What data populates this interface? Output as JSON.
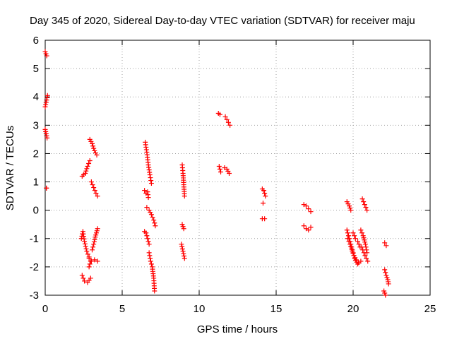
{
  "chart_data": {
    "type": "scatter",
    "title": "Day 345 of 2020, Sidereal Day-to-day VTEC variation (SDTVAR) for receiver maju",
    "xlabel": "GPS time / hours",
    "ylabel": "SDTVAR / TECUs",
    "xlim": [
      0,
      25
    ],
    "ylim": [
      -3,
      6
    ],
    "xticks": [
      0,
      5,
      10,
      15,
      20,
      25
    ],
    "yticks": [
      -3,
      -2,
      -1,
      0,
      1,
      2,
      3,
      4,
      5,
      6
    ],
    "grid": true,
    "marker": "plus",
    "color": "#ff0000",
    "segments": [
      {
        "x": [
          0.0,
          0.1
        ],
        "y": [
          5.6,
          5.45
        ]
      },
      {
        "x": [
          0.0,
          0.15
        ],
        "y": [
          3.65,
          4.05
        ]
      },
      {
        "x": [
          0.0,
          0.12
        ],
        "y": [
          2.85,
          2.55
        ]
      },
      {
        "x": [
          0.08,
          0.08
        ],
        "y": [
          0.78,
          0.78
        ]
      },
      {
        "x": [
          2.4,
          2.6,
          2.75,
          2.9
        ],
        "y": [
          1.2,
          1.3,
          1.55,
          1.75
        ]
      },
      {
        "x": [
          2.9,
          3.05,
          3.2,
          3.35
        ],
        "y": [
          2.5,
          2.35,
          2.1,
          1.95
        ]
      },
      {
        "x": [
          3.0,
          3.15,
          3.3,
          3.4
        ],
        "y": [
          1.0,
          0.8,
          0.6,
          0.5
        ]
      },
      {
        "x": [
          2.35,
          2.45,
          2.55,
          2.7,
          2.85
        ],
        "y": [
          -1.0,
          -0.75,
          -1.1,
          -1.45,
          -1.65
        ]
      },
      {
        "x": [
          2.85,
          3.0,
          3.2,
          3.4
        ],
        "y": [
          -1.7,
          -1.8,
          -1.75,
          -1.8
        ]
      },
      {
        "x": [
          3.05,
          3.15,
          3.25,
          3.4
        ],
        "y": [
          -1.4,
          -1.2,
          -0.95,
          -0.65
        ]
      },
      {
        "x": [
          2.4,
          2.55,
          2.75,
          2.95
        ],
        "y": [
          -2.3,
          -2.5,
          -2.55,
          -2.4
        ]
      },
      {
        "x": [
          2.85,
          2.95
        ],
        "y": [
          -2.0,
          -1.8
        ]
      },
      {
        "x": [
          6.5,
          6.6,
          6.7,
          6.8,
          6.9
        ],
        "y": [
          2.4,
          2.05,
          1.6,
          1.25,
          0.95
        ]
      },
      {
        "x": [
          6.45,
          6.55,
          6.65,
          6.7
        ],
        "y": [
          0.7,
          0.6,
          0.65,
          0.45
        ]
      },
      {
        "x": [
          6.6,
          6.75,
          6.9,
          7.05,
          7.15
        ],
        "y": [
          0.1,
          0.0,
          -0.15,
          -0.35,
          -0.55
        ]
      },
      {
        "x": [
          6.45,
          6.55,
          6.65,
          6.75
        ],
        "y": [
          -0.75,
          -0.8,
          -1.0,
          -1.2
        ]
      },
      {
        "x": [
          6.75,
          6.85,
          6.95,
          7.05,
          7.1
        ],
        "y": [
          -1.5,
          -1.8,
          -2.0,
          -2.4,
          -2.85
        ]
      },
      {
        "x": [
          8.9,
          8.95,
          9.0,
          9.05
        ],
        "y": [
          1.6,
          1.3,
          0.9,
          0.5
        ]
      },
      {
        "x": [
          8.9,
          9.0
        ],
        "y": [
          -0.5,
          -0.65
        ]
      },
      {
        "x": [
          8.85,
          8.95,
          9.05
        ],
        "y": [
          -1.2,
          -1.45,
          -1.7
        ]
      },
      {
        "x": [
          11.25,
          11.35
        ],
        "y": [
          3.42,
          3.38
        ]
      },
      {
        "x": [
          11.7,
          11.8,
          11.9,
          12.0
        ],
        "y": [
          3.3,
          3.2,
          3.1,
          3.0
        ]
      },
      {
        "x": [
          11.3,
          11.4
        ],
        "y": [
          1.55,
          1.35
        ]
      },
      {
        "x": [
          11.65,
          11.8,
          11.95
        ],
        "y": [
          1.5,
          1.45,
          1.3
        ]
      },
      {
        "x": [
          14.1,
          14.2,
          14.3
        ],
        "y": [
          0.75,
          0.7,
          0.5
        ]
      },
      {
        "x": [
          14.15
        ],
        "y": [
          0.25
        ]
      },
      {
        "x": [
          14.1,
          14.25
        ],
        "y": [
          -0.3,
          -0.3
        ]
      },
      {
        "x": [
          16.8,
          16.95,
          17.1,
          17.25
        ],
        "y": [
          0.2,
          0.15,
          0.05,
          -0.05
        ]
      },
      {
        "x": [
          16.8,
          16.95,
          17.1,
          17.25
        ],
        "y": [
          -0.55,
          -0.65,
          -0.7,
          -0.6
        ]
      },
      {
        "x": [
          19.6,
          19.75,
          19.85
        ],
        "y": [
          0.3,
          0.15,
          0.0
        ]
      },
      {
        "x": [
          19.6,
          19.7,
          19.8,
          19.9,
          20.0,
          20.1,
          20.3
        ],
        "y": [
          -0.7,
          -0.9,
          -1.1,
          -1.3,
          -1.5,
          -1.7,
          -1.9
        ]
      },
      {
        "x": [
          19.65,
          19.8,
          19.95,
          20.05,
          20.2,
          20.35,
          20.5
        ],
        "y": [
          -1.0,
          -1.2,
          -1.45,
          -1.6,
          -1.75,
          -1.85,
          -1.8
        ]
      },
      {
        "x": [
          20.0,
          20.15,
          20.3,
          20.45
        ],
        "y": [
          -0.8,
          -1.0,
          -1.1,
          -1.3
        ]
      },
      {
        "x": [
          20.6,
          20.75,
          20.9
        ],
        "y": [
          0.4,
          0.2,
          0.0
        ]
      },
      {
        "x": [
          20.5,
          20.65,
          20.8,
          20.9
        ],
        "y": [
          -0.7,
          -0.9,
          -1.2,
          -1.5
        ]
      },
      {
        "x": [
          20.55,
          20.7,
          20.85,
          20.95
        ],
        "y": [
          -1.3,
          -1.5,
          -1.7,
          -1.8
        ]
      },
      {
        "x": [
          22.05,
          22.15
        ],
        "y": [
          -1.15,
          -1.25
        ]
      },
      {
        "x": [
          22.05,
          22.15,
          22.25,
          22.3
        ],
        "y": [
          -2.1,
          -2.3,
          -2.45,
          -2.6
        ]
      },
      {
        "x": [
          22.0,
          22.1
        ],
        "y": [
          -2.85,
          -3.0
        ]
      }
    ]
  }
}
